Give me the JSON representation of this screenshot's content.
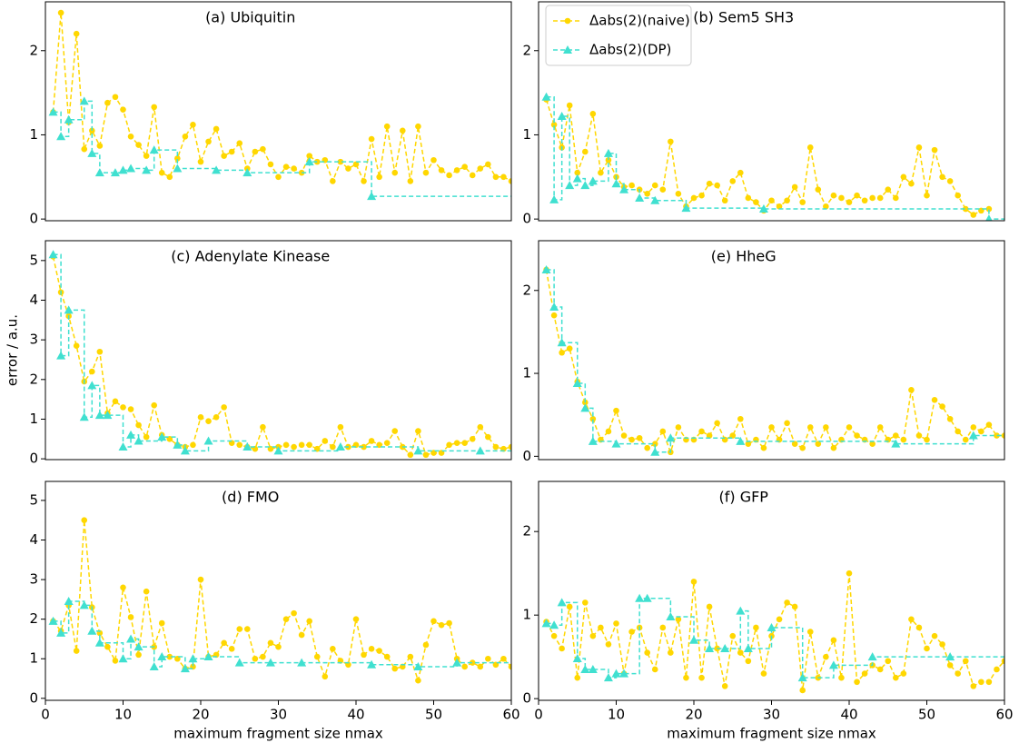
{
  "chart_data": [
    {
      "type": "line",
      "title": "(a) Ubiquitin",
      "xlim": [
        0,
        60
      ],
      "ylim": [
        -0.02,
        2.58
      ],
      "yticks": [
        0,
        1,
        2
      ],
      "series": [
        {
          "name": "Δabs(2)(naive)",
          "color": "#ffd700",
          "marker": "circle",
          "x": [
            1,
            2,
            3,
            4,
            5,
            6,
            7,
            8,
            9,
            10,
            11,
            12,
            13,
            14,
            15,
            16,
            17,
            18,
            19,
            20,
            21,
            22,
            23,
            24,
            25,
            26,
            27,
            28,
            29,
            30,
            31,
            32,
            33,
            34,
            35,
            36,
            37,
            38,
            39,
            40,
            41,
            42,
            43,
            44,
            45,
            46,
            47,
            48,
            49,
            50,
            51,
            52,
            53,
            54,
            55,
            56,
            57,
            58,
            59,
            60
          ],
          "values": [
            1.27,
            2.45,
            1.15,
            2.2,
            0.83,
            1.05,
            0.87,
            1.38,
            1.45,
            1.3,
            0.98,
            0.88,
            0.75,
            1.33,
            0.55,
            0.5,
            0.72,
            0.98,
            1.12,
            0.68,
            0.92,
            1.07,
            0.75,
            0.8,
            0.9,
            0.6,
            0.8,
            0.83,
            0.65,
            0.5,
            0.62,
            0.6,
            0.55,
            0.75,
            0.68,
            0.7,
            0.45,
            0.68,
            0.6,
            0.65,
            0.45,
            0.95,
            0.5,
            1.1,
            0.55,
            1.05,
            0.45,
            1.1,
            0.55,
            0.7,
            0.58,
            0.52,
            0.58,
            0.62,
            0.52,
            0.6,
            0.65,
            0.5,
            0.5,
            0.45
          ]
        },
        {
          "name": "Δabs(2)(DP)",
          "color": "#40e0d0",
          "marker": "triangle",
          "drawstyle": "steps-post",
          "x": [
            1,
            2,
            3,
            5,
            6,
            7,
            9,
            10,
            11,
            13,
            14,
            17,
            22,
            26,
            34,
            42
          ],
          "values": [
            1.27,
            0.98,
            1.18,
            1.4,
            0.78,
            0.55,
            0.55,
            0.58,
            0.6,
            0.58,
            0.82,
            0.6,
            0.58,
            0.55,
            0.68,
            0.27
          ]
        }
      ]
    },
    {
      "type": "line",
      "title": "(b) Sem5 SH3",
      "xlim": [
        0,
        60
      ],
      "ylim": [
        -0.02,
        2.58
      ],
      "yticks": [
        0,
        1,
        2
      ],
      "legend": "upper left",
      "series": [
        {
          "name": "Δabs(2)(naive)",
          "color": "#ffd700",
          "marker": "circle",
          "x": [
            1,
            2,
            3,
            4,
            5,
            6,
            7,
            8,
            9,
            10,
            11,
            12,
            13,
            14,
            15,
            16,
            17,
            18,
            19,
            20,
            21,
            22,
            23,
            24,
            25,
            26,
            27,
            28,
            29,
            30,
            31,
            32,
            33,
            34,
            35,
            36,
            37,
            38,
            39,
            40,
            41,
            42,
            43,
            44,
            45,
            46,
            47,
            48,
            49,
            50,
            51,
            52,
            53,
            54,
            55,
            56,
            57,
            58
          ],
          "values": [
            1.42,
            1.12,
            0.85,
            1.35,
            0.55,
            0.8,
            1.25,
            0.55,
            0.7,
            0.5,
            0.38,
            0.4,
            0.35,
            0.3,
            0.4,
            0.35,
            0.92,
            0.3,
            0.15,
            0.25,
            0.28,
            0.42,
            0.4,
            0.22,
            0.45,
            0.55,
            0.25,
            0.2,
            0.1,
            0.22,
            0.15,
            0.22,
            0.38,
            0.2,
            0.85,
            0.35,
            0.15,
            0.28,
            0.25,
            0.2,
            0.28,
            0.22,
            0.25,
            0.25,
            0.35,
            0.25,
            0.5,
            0.42,
            0.85,
            0.28,
            0.82,
            0.5,
            0.45,
            0.28,
            0.12,
            0.05,
            0.1,
            0.12
          ]
        },
        {
          "name": "Δabs(2)(DP)",
          "color": "#40e0d0",
          "marker": "triangle",
          "drawstyle": "steps-post",
          "x": [
            1,
            2,
            3,
            4,
            5,
            6,
            7,
            9,
            10,
            11,
            13,
            15,
            19,
            29,
            58
          ],
          "values": [
            1.45,
            0.23,
            1.22,
            0.4,
            0.48,
            0.4,
            0.45,
            0.78,
            0.42,
            0.35,
            0.25,
            0.22,
            0.13,
            0.12,
            0.0
          ]
        }
      ]
    },
    {
      "type": "line",
      "title": "(c) Adenylate Kinease",
      "y_label": "error / a.u.",
      "xlim": [
        0,
        60
      ],
      "ylim": [
        -0.02,
        5.5
      ],
      "yticks": [
        0,
        1,
        2,
        3,
        4,
        5
      ],
      "series": [
        {
          "name": "Δabs(2)(naive)",
          "color": "#ffd700",
          "marker": "circle",
          "x": [
            1,
            2,
            3,
            4,
            5,
            6,
            7,
            8,
            9,
            10,
            11,
            12,
            13,
            14,
            15,
            16,
            17,
            18,
            19,
            20,
            21,
            22,
            23,
            24,
            25,
            26,
            27,
            28,
            29,
            30,
            31,
            32,
            33,
            34,
            35,
            36,
            37,
            38,
            39,
            40,
            41,
            42,
            43,
            44,
            45,
            46,
            47,
            48,
            49,
            50,
            51,
            52,
            53,
            54,
            55,
            56,
            57,
            58,
            59,
            60
          ],
          "values": [
            5.1,
            4.2,
            3.6,
            2.85,
            1.95,
            2.2,
            2.7,
            1.15,
            1.45,
            1.3,
            1.25,
            0.85,
            0.55,
            1.35,
            0.6,
            0.5,
            0.35,
            0.3,
            0.35,
            1.05,
            0.95,
            1.05,
            1.3,
            0.4,
            0.35,
            0.3,
            0.25,
            0.8,
            0.25,
            0.3,
            0.35,
            0.3,
            0.35,
            0.35,
            0.25,
            0.45,
            0.3,
            0.8,
            0.3,
            0.35,
            0.3,
            0.45,
            0.35,
            0.4,
            0.7,
            0.3,
            0.1,
            0.7,
            0.1,
            0.15,
            0.15,
            0.35,
            0.4,
            0.4,
            0.5,
            0.8,
            0.55,
            0.3,
            0.25,
            0.3
          ]
        },
        {
          "name": "Δabs(2)(DP)",
          "color": "#40e0d0",
          "marker": "triangle",
          "drawstyle": "steps-post",
          "x": [
            1,
            2,
            3,
            5,
            6,
            7,
            8,
            10,
            11,
            12,
            15,
            17,
            18,
            21,
            26,
            30,
            38,
            48,
            56
          ],
          "values": [
            5.15,
            2.6,
            3.75,
            1.05,
            1.85,
            1.1,
            1.1,
            0.3,
            0.6,
            0.45,
            0.55,
            0.35,
            0.2,
            0.45,
            0.3,
            0.2,
            0.3,
            0.2,
            0.2
          ]
        }
      ]
    },
    {
      "type": "line",
      "title": "(e) HheG",
      "xlim": [
        0,
        60
      ],
      "ylim": [
        -0.04,
        2.6
      ],
      "yticks": [
        0,
        1,
        2
      ],
      "series": [
        {
          "name": "Δabs(2)(naive)",
          "color": "#ffd700",
          "marker": "circle",
          "x": [
            1,
            2,
            3,
            4,
            5,
            6,
            7,
            8,
            9,
            10,
            11,
            12,
            13,
            14,
            15,
            16,
            17,
            18,
            19,
            20,
            21,
            22,
            23,
            24,
            25,
            26,
            27,
            28,
            29,
            30,
            31,
            32,
            33,
            34,
            35,
            36,
            37,
            38,
            39,
            40,
            41,
            42,
            43,
            44,
            45,
            46,
            47,
            48,
            49,
            50,
            51,
            52,
            53,
            54,
            55,
            56,
            57,
            58,
            59,
            60
          ],
          "values": [
            2.25,
            1.7,
            1.25,
            1.3,
            0.9,
            0.65,
            0.45,
            0.2,
            0.3,
            0.55,
            0.25,
            0.2,
            0.22,
            0.1,
            0.15,
            0.3,
            0.05,
            0.35,
            0.2,
            0.2,
            0.3,
            0.25,
            0.4,
            0.2,
            0.25,
            0.45,
            0.15,
            0.2,
            0.1,
            0.35,
            0.2,
            0.4,
            0.15,
            0.1,
            0.35,
            0.15,
            0.35,
            0.1,
            0.2,
            0.35,
            0.25,
            0.2,
            0.15,
            0.35,
            0.2,
            0.25,
            0.2,
            0.8,
            0.25,
            0.2,
            0.68,
            0.6,
            0.45,
            0.3,
            0.2,
            0.35,
            0.3,
            0.38,
            0.25,
            0.25
          ]
        },
        {
          "name": "Δabs(2)(DP)",
          "color": "#40e0d0",
          "marker": "triangle",
          "drawstyle": "steps-post",
          "x": [
            1,
            2,
            3,
            5,
            6,
            7,
            10,
            15,
            17,
            26,
            46,
            56
          ],
          "values": [
            2.25,
            1.8,
            1.37,
            0.88,
            0.58,
            0.18,
            0.15,
            0.05,
            0.22,
            0.18,
            0.15,
            0.25
          ]
        }
      ]
    },
    {
      "type": "line",
      "title": "(d) FMO",
      "x_label": "maximum fragment size nmax",
      "xlim": [
        0,
        60
      ],
      "xticks": [
        0,
        10,
        20,
        30,
        40,
        50,
        60
      ],
      "ylim": [
        -0.05,
        5.48
      ],
      "yticks": [
        0,
        1,
        2,
        3,
        4,
        5
      ],
      "series": [
        {
          "name": "Δabs(2)(naive)",
          "color": "#ffd700",
          "marker": "circle",
          "x": [
            1,
            2,
            3,
            4,
            5,
            6,
            7,
            8,
            9,
            10,
            11,
            12,
            13,
            14,
            15,
            16,
            17,
            18,
            19,
            20,
            21,
            22,
            23,
            24,
            25,
            26,
            27,
            28,
            29,
            30,
            31,
            32,
            33,
            34,
            35,
            36,
            37,
            38,
            39,
            40,
            41,
            42,
            43,
            44,
            45,
            46,
            47,
            48,
            49,
            50,
            51,
            52,
            53,
            54,
            55,
            56,
            57,
            58,
            59,
            60
          ],
          "values": [
            1.95,
            1.7,
            2.35,
            1.2,
            4.5,
            2.3,
            1.65,
            1.3,
            0.95,
            2.8,
            2.05,
            1.1,
            2.7,
            1.3,
            1.9,
            1.05,
            1.0,
            0.75,
            0.8,
            3.0,
            1.05,
            1.1,
            1.4,
            1.25,
            1.75,
            1.75,
            1.0,
            1.05,
            1.4,
            1.3,
            2.0,
            2.15,
            1.6,
            1.95,
            1.05,
            0.55,
            1.25,
            0.95,
            0.85,
            2.0,
            1.1,
            1.25,
            1.2,
            1.05,
            0.75,
            0.8,
            1.05,
            0.45,
            1.35,
            1.95,
            1.85,
            1.9,
            1.0,
            0.8,
            0.9,
            0.8,
            1.0,
            0.85,
            1.0,
            0.8
          ]
        },
        {
          "name": "Δabs(2)(DP)",
          "color": "#40e0d0",
          "marker": "triangle",
          "drawstyle": "steps-post",
          "x": [
            1,
            2,
            3,
            5,
            6,
            7,
            10,
            11,
            12,
            14,
            15,
            18,
            19,
            21,
            25,
            29,
            33,
            42,
            48,
            53
          ],
          "values": [
            1.95,
            1.65,
            2.45,
            2.35,
            1.7,
            1.4,
            1.0,
            1.5,
            1.3,
            0.8,
            1.05,
            0.75,
            1.0,
            1.05,
            0.9,
            0.9,
            0.9,
            0.85,
            0.8,
            0.9
          ]
        }
      ]
    },
    {
      "type": "line",
      "title": "(f) GFP",
      "x_label": "maximum fragment size nmax",
      "xlim": [
        0,
        60
      ],
      "xticks": [
        0,
        10,
        20,
        30,
        40,
        50,
        60
      ],
      "ylim": [
        -0.02,
        2.6
      ],
      "yticks": [
        0,
        1,
        2
      ],
      "series": [
        {
          "name": "Δabs(2)(naive)",
          "color": "#ffd700",
          "marker": "circle",
          "x": [
            1,
            2,
            3,
            4,
            5,
            6,
            7,
            8,
            9,
            10,
            11,
            12,
            13,
            14,
            15,
            16,
            17,
            18,
            19,
            20,
            21,
            22,
            23,
            24,
            25,
            26,
            27,
            28,
            29,
            30,
            31,
            32,
            33,
            34,
            35,
            36,
            37,
            38,
            39,
            40,
            41,
            42,
            43,
            44,
            45,
            46,
            47,
            48,
            49,
            50,
            51,
            52,
            53,
            54,
            55,
            56,
            57,
            58,
            59,
            60
          ],
          "values": [
            0.92,
            0.75,
            0.6,
            1.1,
            0.25,
            1.15,
            0.75,
            0.85,
            0.65,
            0.9,
            0.3,
            0.8,
            0.85,
            0.55,
            0.35,
            0.85,
            0.55,
            0.95,
            0.25,
            1.4,
            0.25,
            1.1,
            0.6,
            0.15,
            0.75,
            0.55,
            0.45,
            0.85,
            0.3,
            0.75,
            0.95,
            1.15,
            1.1,
            0.1,
            0.8,
            0.25,
            0.5,
            0.7,
            0.25,
            1.5,
            0.2,
            0.3,
            0.4,
            0.35,
            0.45,
            0.25,
            0.3,
            0.95,
            0.85,
            0.6,
            0.75,
            0.65,
            0.4,
            0.3,
            0.45,
            0.15,
            0.2,
            0.2,
            0.35,
            0.45
          ]
        },
        {
          "name": "Δabs(2)(DP)",
          "color": "#40e0d0",
          "marker": "triangle",
          "drawstyle": "steps-post",
          "x": [
            1,
            2,
            3,
            5,
            6,
            7,
            9,
            10,
            11,
            13,
            14,
            17,
            20,
            22,
            24,
            26,
            27,
            30,
            34,
            38,
            43,
            53
          ],
          "values": [
            0.9,
            0.88,
            1.15,
            0.48,
            0.35,
            0.35,
            0.25,
            0.3,
            0.3,
            1.2,
            1.2,
            0.98,
            0.7,
            0.6,
            0.6,
            1.05,
            0.6,
            0.85,
            0.25,
            0.4,
            0.5,
            0.5
          ]
        }
      ]
    }
  ]
}
